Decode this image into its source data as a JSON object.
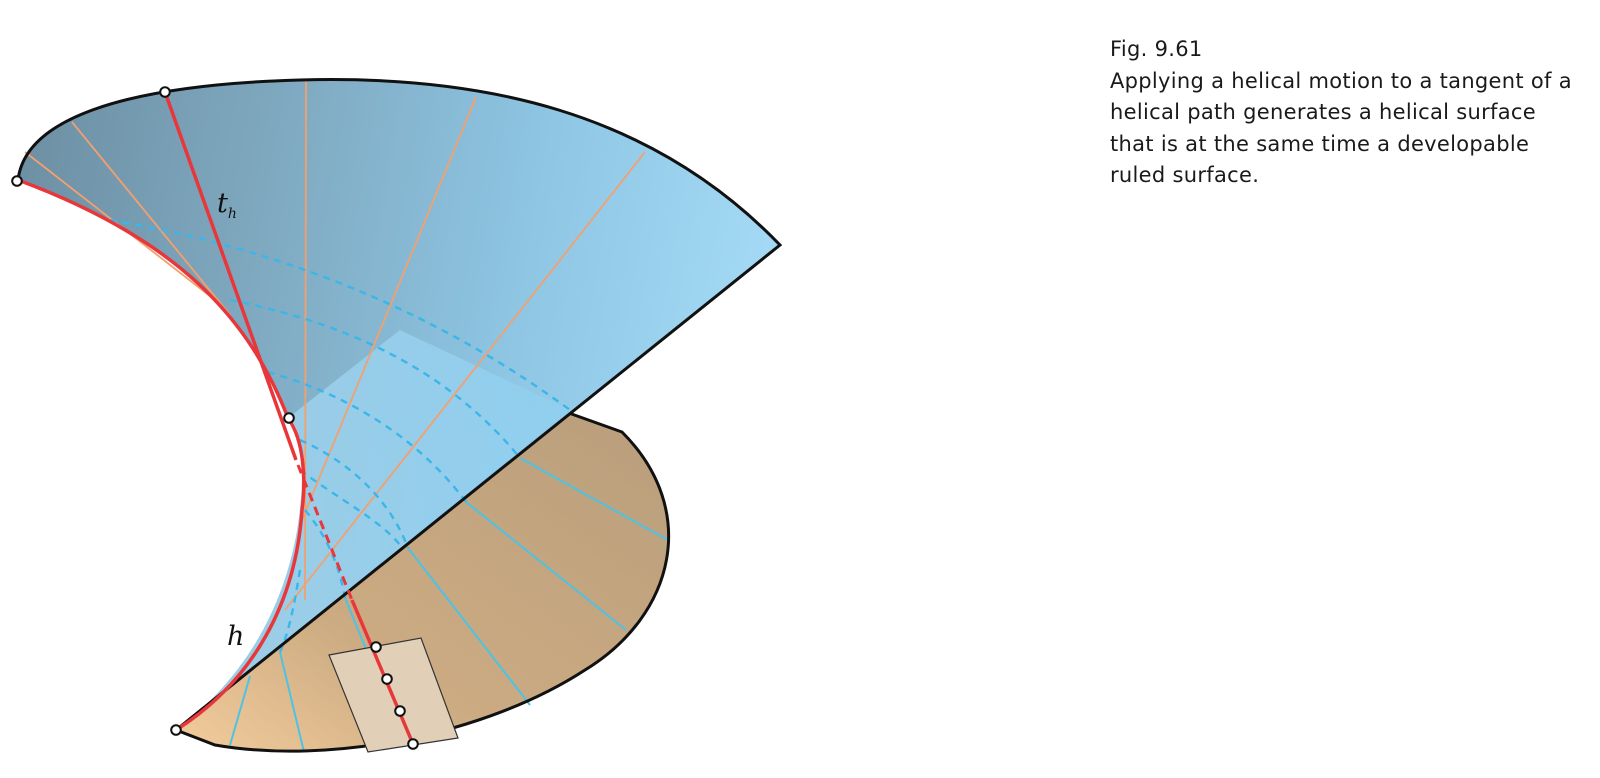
{
  "caption": {
    "figure_number": "Fig. 9.61",
    "text": "Applying a helical motion to a tangent of a helical path generates a helical surface that is at the same time a developable ruled surface."
  },
  "labels": {
    "tangent_label": "t",
    "tangent_subscript": "h",
    "helix_label": "h"
  },
  "colors": {
    "surface_light_blue": "#9fd6f2",
    "surface_dark_blue": "#6f97ad",
    "surface_tan": "#c4a783",
    "helix_red": "#e8373b",
    "ruling_orange": "#f3a06f",
    "hidden_dashed_blue": "#3ab6e9",
    "outline_black": "#111111",
    "tangent_plane_beige": "#e1cfb8"
  }
}
